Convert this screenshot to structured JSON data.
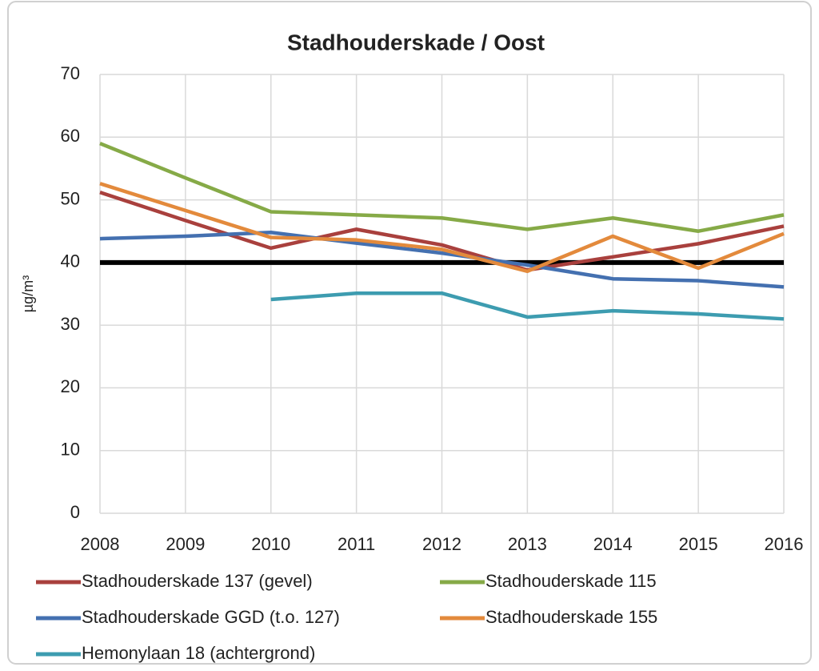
{
  "chart_data": {
    "type": "line",
    "title": "Stadhouderskade / Oost",
    "y_label": "µg/m³",
    "x": [
      2008,
      2009,
      2010,
      2011,
      2012,
      2013,
      2014,
      2015,
      2016
    ],
    "xlim": [
      2008,
      2016
    ],
    "xticks": [
      2008,
      2009,
      2010,
      2011,
      2012,
      2013,
      2014,
      2015,
      2016
    ],
    "ylim": [
      0,
      70
    ],
    "yticks": [
      0,
      10,
      20,
      30,
      40,
      50,
      60,
      70
    ],
    "grid": true,
    "reference_line": {
      "value": 40,
      "color": "#000000"
    },
    "series": [
      {
        "name": "Stadhouderskade 137 (gevel)",
        "color": "#a9403d",
        "values": [
          51.2,
          46.7,
          42.3,
          45.3,
          42.8,
          38.8,
          40.9,
          43.0,
          45.8
        ]
      },
      {
        "name": "Stadhouderskade 115",
        "color": "#86aa47",
        "values": [
          59.0,
          53.5,
          48.1,
          47.6,
          47.1,
          45.3,
          47.1,
          45.0,
          47.6
        ]
      },
      {
        "name": "Stadhouderskade GGD (t.o. 127)",
        "color": "#4470b0",
        "values": [
          43.8,
          44.2,
          44.8,
          43.1,
          41.5,
          39.6,
          37.4,
          37.1,
          36.1
        ]
      },
      {
        "name": "Stadhouderskade 155",
        "color": "#e38a3c",
        "values": [
          52.6,
          48.3,
          44.0,
          43.6,
          42.1,
          38.6,
          44.2,
          39.1,
          44.6
        ]
      },
      {
        "name": "Hemonylaan 18 (achtergrond)",
        "color": "#3d9cb0",
        "values": [
          null,
          null,
          34.1,
          35.1,
          35.1,
          31.3,
          32.3,
          31.8,
          31.0
        ]
      }
    ]
  }
}
